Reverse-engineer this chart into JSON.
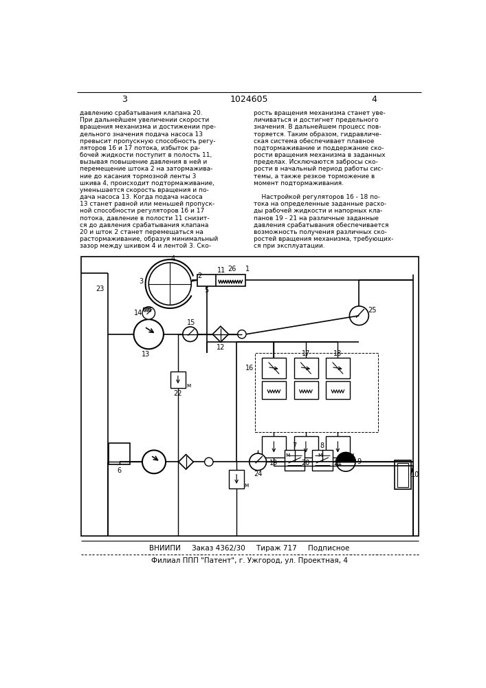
{
  "page_num_left": "3",
  "patent_num": "1024605",
  "page_num_right": "4",
  "text_left": "давлению срабатывания клапана 20.\nПри дальнейшем увеличении скорости\nвращения механизма и достижении пре-\nдельного значения подача насоса 13\nпревысит пропускную способность регу-\nляторов 16 и 17 потока, избыток ра-\nбочей жидкости поступит в полость 11,\nвызывая повышение давления в ней и\nперемещение штока 2 на затормажива-\nние до касания тормозной ленты 3\nшкива 4, происходит подтормаживание,\nуменьшается скорость вращения и по-\nдача насоса 13. Когда подача насоса\n13 станет равной или меньшей пропуск-\nной способности регуляторов 16 и 17\nпотока, давление в полости 11 снизит-\nся до давления срабатывания клапана\n20 и шток 2 станет перемещаться на\nрастормаживание, образуя минимальный\nзазор между шкивом 4 и лентой 3. Ско-",
  "text_right": "рость вращения механизма станет уве-\nличиваться и достигнет предельного\nзначения. В дальнейшем процесс пов-\nторяется. Таким образом, гидравличе-\nская система обеспечивает плавное\nподтормаживание и поддержание ско-\nрости вращения механизма в заданных\nпределах. Исключаются забросы ско-\nрости в начальный период работы сис-\nтемы, а также резкое торможение в\nмомент подтормаживания.\n\n    Настройкой регуляторов 16 - 18 по-\nтока на определенные заданные расхо-\nды рабочей жидкости и напорных кла-\nпанов 19 - 21 на различные заданные\nдавления срабатывания обеспечивается\nвозможность получения различных ско-\nростей вращения механизма, требующих-\nся при эксплуатации.",
  "footer_line1": "ВНИИПИ     Заказ 4362/30     Тираж 717     Подписное",
  "footer_line2": "Филиал ППП \"Патент\", г. Ужгород, ул. Проектная, 4",
  "bg_color": "#ffffff",
  "text_color": "#000000"
}
